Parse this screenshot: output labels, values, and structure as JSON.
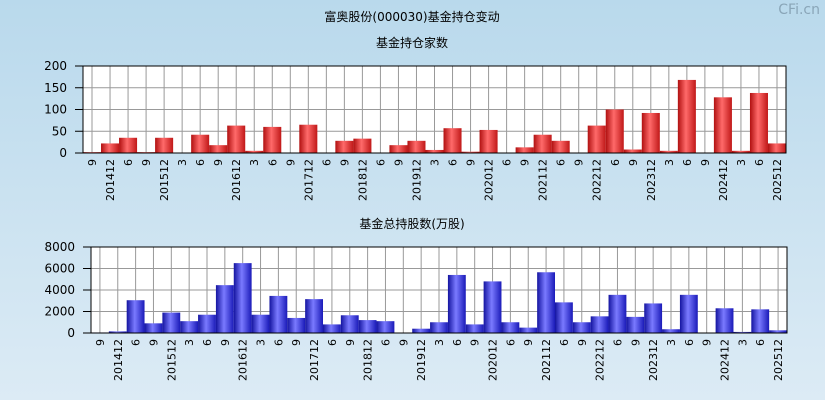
{
  "title": "富奥股份(000030)基金持仓变动",
  "watermark": "CFi.cn",
  "chart_data": [
    {
      "type": "bar",
      "title": "基金持仓家数",
      "color": "#e8262a",
      "grid": true,
      "categories": [
        "9",
        "201412",
        "6",
        "9",
        "201512",
        "3",
        "6",
        "9",
        "201612",
        "3",
        "6",
        "9",
        "201712",
        "6",
        "9",
        "201812",
        "6",
        "9",
        "201912",
        "3",
        "6",
        "9",
        "202012",
        "6",
        "9",
        "202112",
        "6",
        "9",
        "202212",
        "6",
        "9",
        "202312",
        "3",
        "6",
        "9",
        "202412",
        "3",
        "6",
        "202512"
      ],
      "values": [
        2,
        22,
        35,
        2,
        35,
        0,
        42,
        18,
        63,
        5,
        60,
        0,
        65,
        0,
        28,
        33,
        0,
        18,
        28,
        7,
        57,
        3,
        53,
        0,
        13,
        42,
        28,
        0,
        63,
        100,
        8,
        92,
        5,
        168,
        0,
        128,
        5,
        138,
        22
      ],
      "ylim": [
        0,
        200
      ],
      "yticks": [
        0,
        50,
        100,
        150,
        200
      ]
    },
    {
      "type": "bar",
      "title": "基金总持股数(万股)",
      "color": "#2a2ae0",
      "grid": true,
      "categories": [
        "9",
        "201412",
        "6",
        "9",
        "201512",
        "3",
        "6",
        "9",
        "201612",
        "3",
        "6",
        "9",
        "201712",
        "6",
        "9",
        "201812",
        "6",
        "9",
        "201912",
        "3",
        "6",
        "9",
        "202012",
        "6",
        "9",
        "202112",
        "6",
        "9",
        "202212",
        "6",
        "9",
        "202312",
        "3",
        "6",
        "9",
        "202412",
        "3",
        "6",
        "202512"
      ],
      "values": [
        50,
        150,
        3050,
        900,
        1900,
        1100,
        1700,
        4450,
        6500,
        1700,
        3450,
        1400,
        3150,
        800,
        1650,
        1200,
        1100,
        0,
        400,
        1000,
        5400,
        800,
        4800,
        1000,
        500,
        5650,
        2850,
        1000,
        1550,
        3550,
        1500,
        2750,
        350,
        3550,
        0,
        2300,
        100,
        2200,
        250
      ],
      "ylim": [
        0,
        8000
      ],
      "yticks": [
        0,
        2000,
        4000,
        6000,
        8000
      ]
    }
  ]
}
